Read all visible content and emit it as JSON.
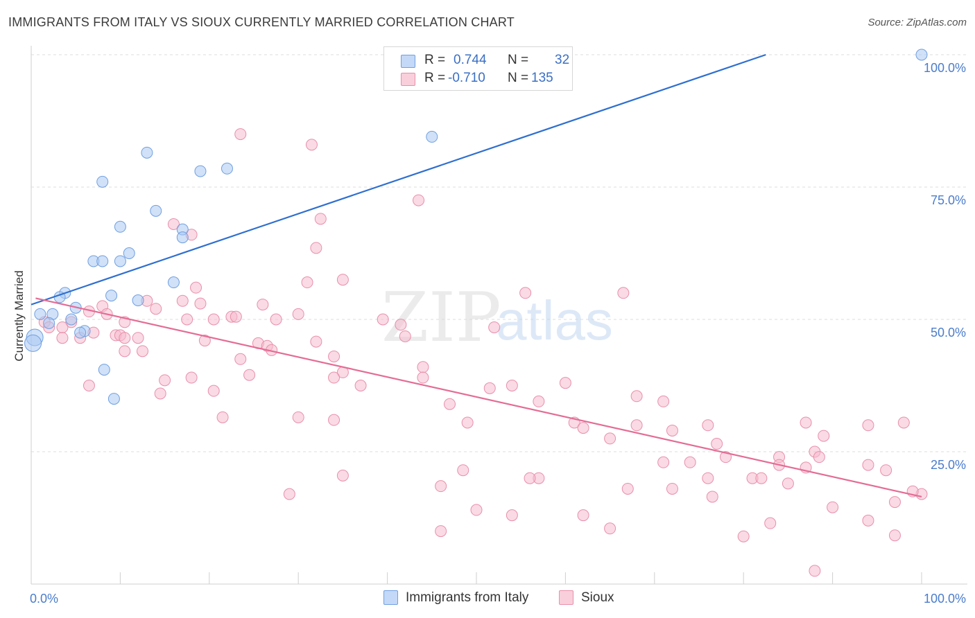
{
  "header": {
    "title": "IMMIGRANTS FROM ITALY VS SIOUX CURRENTLY MARRIED CORRELATION CHART",
    "source": "Source: ZipAtlas.com"
  },
  "watermark": {
    "zip": "ZIP",
    "atlas": "atlas"
  },
  "stats": [
    {
      "r_label": "R =",
      "r_value": "0.744",
      "n_label": "N =",
      "n_value": "32",
      "color": "#a9c8f2",
      "border": "#6f9fe0"
    },
    {
      "r_label": "R =",
      "r_value": "-0.710",
      "n_label": "N =",
      "n_value": "135",
      "color": "#f6bccd",
      "border": "#e88fab"
    }
  ],
  "legend": [
    {
      "label": "Immigrants from Italy",
      "color": "#a9c8f2",
      "border": "#6f9fe0"
    },
    {
      "label": "Sioux",
      "color": "#f6bccd",
      "border": "#e88fab"
    }
  ],
  "chart_data": {
    "type": "scatter",
    "title": "IMMIGRANTS FROM ITALY VS SIOUX CURRENTLY MARRIED CORRELATION CHART",
    "xlabel": "",
    "ylabel": "Currently Married",
    "xlim": [
      0,
      100
    ],
    "ylim": [
      0,
      100
    ],
    "x_tick_labels": [
      {
        "value": 0,
        "label": "0.0%"
      },
      {
        "value": 100,
        "label": "100.0%"
      }
    ],
    "y_tick_labels": [
      {
        "value": 25,
        "label": "25.0%"
      },
      {
        "value": 50,
        "label": "50.0%"
      },
      {
        "value": 75,
        "label": "75.0%"
      },
      {
        "value": 100,
        "label": "100.0%"
      }
    ],
    "grid": true,
    "legend_position": "bottom",
    "colors": {
      "italy_line": "#2e6fcf",
      "sioux_line": "#e46c95",
      "y_tick_text": "#4a7ccc"
    },
    "series": [
      {
        "name": "Immigrants from Italy",
        "color": "#a9c8f2",
        "border": "#6f9fe0",
        "trend": {
          "x": [
            0,
            82.5
          ],
          "y": [
            52.8,
            100
          ]
        },
        "points": [
          [
            100,
            100
          ],
          [
            45,
            84.5
          ],
          [
            13,
            81.5
          ],
          [
            22,
            78.5
          ],
          [
            19,
            78
          ],
          [
            8,
            76
          ],
          [
            14,
            70.5
          ],
          [
            10,
            67.5
          ],
          [
            17,
            67
          ],
          [
            17,
            65.5
          ],
          [
            11,
            62.5
          ],
          [
            7,
            61
          ],
          [
            10,
            61
          ],
          [
            8,
            61
          ],
          [
            16,
            57
          ],
          [
            3.8,
            55
          ],
          [
            3.2,
            54.2
          ],
          [
            9,
            54.5
          ],
          [
            12,
            53.6
          ],
          [
            5,
            52.2
          ],
          [
            1,
            51
          ],
          [
            2.4,
            51
          ],
          [
            4.5,
            50
          ],
          [
            2,
            49.3
          ],
          [
            6,
            47.8
          ],
          [
            5.5,
            47.5
          ],
          [
            0.4,
            46.6
          ],
          [
            0.2,
            45.5
          ],
          [
            8.2,
            40.5
          ],
          [
            9.3,
            35
          ]
        ]
      },
      {
        "name": "Sioux",
        "color": "#f6bccd",
        "border": "#e88fab",
        "trend": {
          "x": [
            0.5,
            100
          ],
          "y": [
            54,
            16.5
          ]
        },
        "points": [
          [
            23.5,
            85
          ],
          [
            31.5,
            83
          ],
          [
            43.5,
            72.5
          ],
          [
            16,
            68
          ],
          [
            32.5,
            69
          ],
          [
            18,
            66
          ],
          [
            32,
            63.5
          ],
          [
            35,
            57.5
          ],
          [
            31,
            57
          ],
          [
            18.5,
            56
          ],
          [
            55.5,
            55
          ],
          [
            66.5,
            55
          ],
          [
            13,
            53.5
          ],
          [
            17,
            53.5
          ],
          [
            19,
            53
          ],
          [
            26,
            52.8
          ],
          [
            14,
            52
          ],
          [
            8,
            52.5
          ],
          [
            6.5,
            51.5
          ],
          [
            30,
            51
          ],
          [
            8.5,
            51
          ],
          [
            22.5,
            50.5
          ],
          [
            23,
            50.5
          ],
          [
            17.5,
            50
          ],
          [
            20.5,
            50
          ],
          [
            27.5,
            50
          ],
          [
            39.5,
            50
          ],
          [
            10.5,
            49.5
          ],
          [
            4.5,
            49.5
          ],
          [
            1.5,
            49.5
          ],
          [
            2,
            48.5
          ],
          [
            41.5,
            49
          ],
          [
            52,
            48.5
          ],
          [
            3.5,
            48.5
          ],
          [
            7,
            47.5
          ],
          [
            9.5,
            47
          ],
          [
            10,
            47
          ],
          [
            42,
            46.8
          ],
          [
            5.5,
            46.5
          ],
          [
            12,
            46.5
          ],
          [
            10.5,
            46.5
          ],
          [
            3.5,
            46.5
          ],
          [
            19.5,
            46
          ],
          [
            25.5,
            45.5
          ],
          [
            32,
            45.8
          ],
          [
            26.5,
            45
          ],
          [
            27,
            44.2
          ],
          [
            10.5,
            44
          ],
          [
            12.5,
            44
          ],
          [
            23.5,
            42.5
          ],
          [
            34,
            43
          ],
          [
            44,
            41
          ],
          [
            35,
            40
          ],
          [
            24.5,
            39.5
          ],
          [
            34,
            39
          ],
          [
            44,
            39
          ],
          [
            15,
            38.5
          ],
          [
            18,
            39
          ],
          [
            60,
            38
          ],
          [
            54,
            37.5
          ],
          [
            6.5,
            37.5
          ],
          [
            37,
            37.5
          ],
          [
            51.5,
            37
          ],
          [
            20.5,
            36.5
          ],
          [
            14.5,
            36
          ],
          [
            68,
            35.5
          ],
          [
            57,
            34.5
          ],
          [
            71,
            34.5
          ],
          [
            47,
            34
          ],
          [
            21.5,
            31.5
          ],
          [
            30,
            31.5
          ],
          [
            34,
            31
          ],
          [
            49,
            30.5
          ],
          [
            61,
            30.5
          ],
          [
            76,
            30
          ],
          [
            68,
            30
          ],
          [
            98,
            30.5
          ],
          [
            87,
            30.5
          ],
          [
            94,
            30
          ],
          [
            62,
            29.5
          ],
          [
            72,
            29
          ],
          [
            65,
            27.5
          ],
          [
            89,
            28
          ],
          [
            77,
            26.5
          ],
          [
            78,
            24
          ],
          [
            84,
            24
          ],
          [
            88,
            25
          ],
          [
            88.5,
            24
          ],
          [
            74,
            23
          ],
          [
            71,
            23
          ],
          [
            84,
            22.5
          ],
          [
            87,
            22
          ],
          [
            94,
            22.5
          ],
          [
            96,
            21.5
          ],
          [
            48.5,
            21.5
          ],
          [
            35,
            20.5
          ],
          [
            57,
            20
          ],
          [
            56,
            20
          ],
          [
            76,
            20
          ],
          [
            81,
            20
          ],
          [
            82,
            20
          ],
          [
            85,
            19
          ],
          [
            46,
            18.5
          ],
          [
            67,
            18
          ],
          [
            72,
            18
          ],
          [
            100,
            17
          ],
          [
            99,
            17.5
          ],
          [
            29,
            17
          ],
          [
            76.5,
            16.5
          ],
          [
            97,
            15.5
          ],
          [
            90,
            14.5
          ],
          [
            50,
            14
          ],
          [
            54,
            13
          ],
          [
            62,
            13
          ],
          [
            83,
            11.5
          ],
          [
            94,
            12
          ],
          [
            46,
            10
          ],
          [
            65,
            10.5
          ],
          [
            80,
            9
          ],
          [
            97,
            9.2
          ],
          [
            88,
            2.5
          ]
        ]
      }
    ]
  }
}
